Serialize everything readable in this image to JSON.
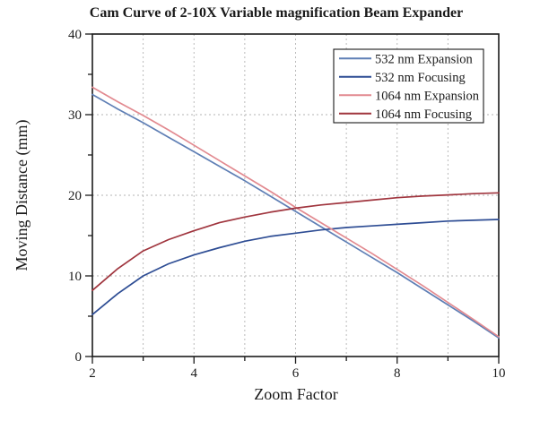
{
  "chart_data": {
    "type": "line",
    "title": "Cam Curve of 2-10X Variable magnification Beam Expander",
    "xlabel": "Zoom Factor",
    "ylabel": "Moving Distance (mm)",
    "xlim": [
      2,
      10
    ],
    "ylim": [
      0,
      40
    ],
    "x_major_ticks": [
      2,
      4,
      6,
      8,
      10
    ],
    "x_minor_ticks": [
      3,
      5,
      7,
      9
    ],
    "y_major_ticks": [
      0,
      10,
      20,
      30,
      40
    ],
    "y_minor_ticks": [
      5,
      15,
      25,
      35
    ],
    "x_gridlines": [
      3,
      4,
      5,
      6,
      7,
      8,
      9
    ],
    "y_gridlines": [
      10,
      20,
      30
    ],
    "grid_style": "dashed",
    "grid_color": "#b3b3b3",
    "axis_color": "#1a1a1a",
    "background_color": "#ffffff",
    "legend_position": "top-right",
    "x": [
      2,
      2.5,
      3,
      3.5,
      4,
      4.5,
      5,
      5.5,
      6,
      6.5,
      7,
      7.5,
      8,
      8.5,
      9,
      9.5,
      10
    ],
    "series": [
      {
        "name": "532 nm Expansion",
        "color": "#5f7fb5",
        "values": [
          32.5,
          30.7,
          29.0,
          27.2,
          25.4,
          23.6,
          21.8,
          19.9,
          18.0,
          16.1,
          14.2,
          12.3,
          10.4,
          8.4,
          6.4,
          4.4,
          2.3
        ]
      },
      {
        "name": "532 nm Focusing",
        "color": "#2e4d94",
        "values": [
          5.2,
          7.8,
          10.0,
          11.5,
          12.6,
          13.5,
          14.3,
          14.9,
          15.3,
          15.7,
          16.0,
          16.2,
          16.4,
          16.6,
          16.8,
          16.9,
          17.0
        ]
      },
      {
        "name": "1064 nm Expansion",
        "color": "#e28a90",
        "values": [
          33.4,
          31.6,
          29.9,
          28.1,
          26.2,
          24.3,
          22.4,
          20.5,
          18.5,
          16.6,
          14.7,
          12.8,
          10.8,
          8.8,
          6.7,
          4.6,
          2.45
        ]
      },
      {
        "name": "1064 nm Focusing",
        "color": "#a0353e",
        "values": [
          8.2,
          10.9,
          13.1,
          14.5,
          15.6,
          16.6,
          17.3,
          17.9,
          18.4,
          18.8,
          19.1,
          19.4,
          19.7,
          19.9,
          20.05,
          20.2,
          20.3
        ]
      }
    ]
  }
}
